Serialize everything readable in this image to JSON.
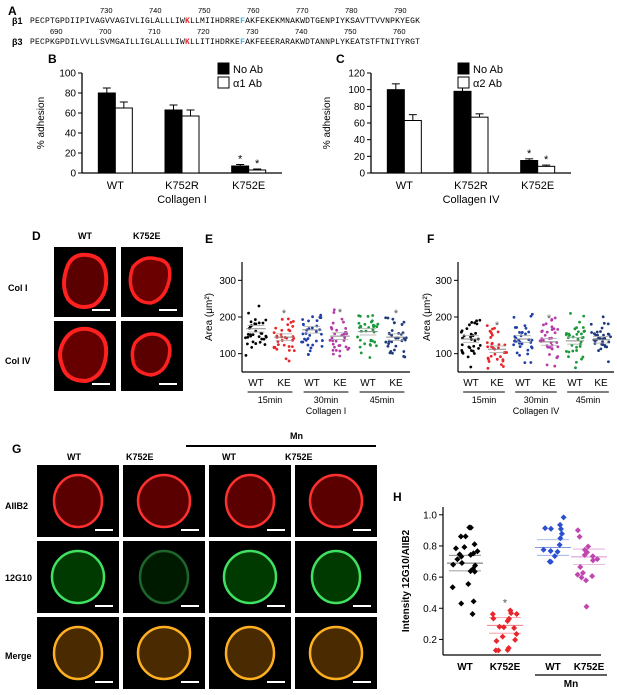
{
  "panelA": {
    "letter": "A",
    "b1": {
      "name": "β1",
      "nums": [
        "730",
        "740",
        "750",
        "760",
        "770",
        "780",
        "790"
      ],
      "pre": "PECPTGPDIIPIVAGVVAGIVLIGLALLLIW",
      "k": "K",
      "mid": "LLMIIHDRRE",
      "f": "F",
      "post": "AKFEKEKMNAKWDTGENPIYKSAVTTVVNPKYEGK"
    },
    "b3": {
      "name": "β3",
      "nums": [
        "690",
        "700",
        "710",
        "720",
        "730",
        "740",
        "750",
        "760"
      ],
      "pre": "PECPKGPDILVVLLSVMGAILLIGLALLLIW",
      "k": "K",
      "mid": "LLITIHDRKE",
      "f": "F",
      "post": "AKFEEERARAKWDTANNPLYKEATSTFTNITYRGT"
    },
    "colors": {
      "k": "#e8262b",
      "f": "#2bb3e8"
    }
  },
  "panelB": {
    "letter": "B",
    "chart_data": {
      "type": "bar",
      "categories": [
        "WT",
        "K752R",
        "K752E"
      ],
      "series": [
        {
          "name": "No Ab",
          "values": [
            80,
            63,
            7
          ],
          "errors": [
            5,
            5,
            1.5
          ],
          "color": "#000000"
        },
        {
          "name": "α1 Ab",
          "values": [
            65,
            57,
            3
          ],
          "errors": [
            6,
            6,
            1
          ],
          "color": "#ffffff"
        }
      ],
      "ylabel": "% adhesion",
      "xlabel": "Collagen I",
      "ylim": [
        0,
        100
      ],
      "yticks": [
        "0",
        "20",
        "40",
        "60",
        "80",
        "100"
      ],
      "significance": [
        "*",
        "*"
      ]
    }
  },
  "panelC": {
    "letter": "C",
    "chart_data": {
      "type": "bar",
      "categories": [
        "WT",
        "K752R",
        "K752E"
      ],
      "series": [
        {
          "name": "No Ab",
          "values": [
            100,
            98,
            15
          ],
          "errors": [
            7,
            6,
            2
          ],
          "color": "#000000"
        },
        {
          "name": "α2 Ab",
          "values": [
            63,
            67,
            8
          ],
          "errors": [
            7,
            4,
            1.5
          ],
          "color": "#ffffff"
        }
      ],
      "ylabel": "% adhesion",
      "xlabel": "Collagen IV",
      "ylim": [
        0,
        120
      ],
      "yticks": [
        "0",
        "20",
        "40",
        "60",
        "80",
        "100",
        "120"
      ],
      "significance": [
        "*",
        "*"
      ]
    }
  },
  "panelD": {
    "letter": "D",
    "cols": [
      "WT",
      "K752E"
    ],
    "rows": [
      "Col I",
      "Col IV"
    ]
  },
  "panelE": {
    "letter": "E",
    "chart_data": {
      "type": "scatter",
      "ylabel": "Area (μm²)",
      "ylim": [
        50,
        350
      ],
      "yticks": [
        "100",
        "200",
        "300"
      ],
      "groups": [
        "WT",
        "KE",
        "WT",
        "KE",
        "WT",
        "KE"
      ],
      "times": [
        "15min",
        "30min",
        "45min"
      ],
      "xlabel": "Collagen I",
      "means": [
        168,
        145,
        165,
        148,
        160,
        145
      ],
      "colors": [
        "#000000",
        "#e8262b",
        "#1f3fa8",
        "#b53aa8",
        "#1a9a3a",
        "#1f3a7a"
      ],
      "significance": [
        "",
        "*",
        "",
        "*",
        "",
        "*"
      ]
    }
  },
  "panelF": {
    "letter": "F",
    "chart_data": {
      "type": "scatter",
      "ylabel": "Area (μm²)",
      "ylim": [
        50,
        350
      ],
      "yticks": [
        "100",
        "200",
        "300"
      ],
      "groups": [
        "WT",
        "KE",
        "WT",
        "KE",
        "WT",
        "KE"
      ],
      "times": [
        "15min",
        "30min",
        "45min"
      ],
      "xlabel": "Collagen IV",
      "means": [
        140,
        112,
        140,
        132,
        135,
        138
      ],
      "colors": [
        "#000000",
        "#e8262b",
        "#1f3fa8",
        "#b53aa8",
        "#1a9a3a",
        "#1f3a7a"
      ],
      "significance": [
        "",
        "*",
        "",
        "*",
        "",
        ""
      ]
    }
  },
  "panelG": {
    "letter": "G",
    "mn": "Mn",
    "cols": [
      "WT",
      "K752E",
      "WT",
      "K752E"
    ],
    "rows": [
      "AIIB2",
      "12G10",
      "Merge"
    ]
  },
  "panelH": {
    "letter": "H",
    "chart_data": {
      "type": "scatter",
      "ylabel": "Intensity 12G10/AIIB2",
      "ylim": [
        0.1,
        1.05
      ],
      "yticks": [
        "0.2",
        "0.4",
        "0.6",
        "0.8",
        "1.0"
      ],
      "groups": [
        "WT",
        "K752E",
        "WT",
        "K752E"
      ],
      "mn": "Mn",
      "means": [
        0.69,
        0.29,
        0.79,
        0.73
      ],
      "colors": [
        "#000000",
        "#e8262b",
        "#2a4fd0",
        "#c047b0"
      ],
      "significance": [
        "",
        "*",
        "",
        ""
      ]
    }
  }
}
